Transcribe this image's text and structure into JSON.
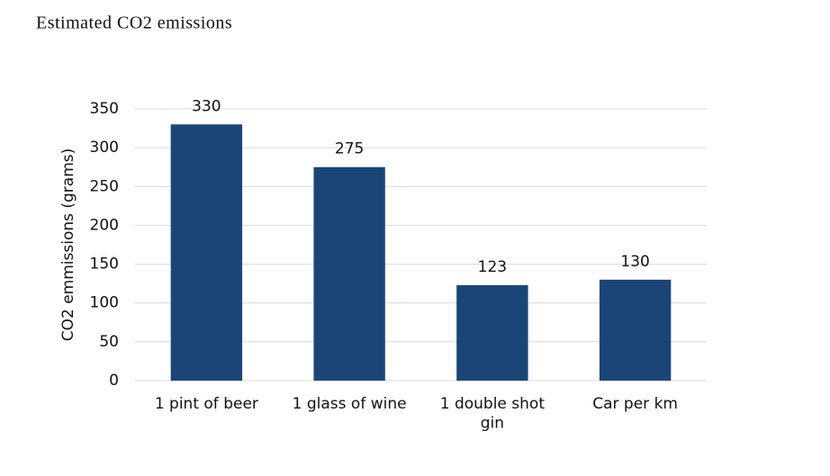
{
  "chart_data": {
    "type": "bar",
    "title": "Estimated CO2 emissions",
    "y_label": "CO2 emmissions (grams)",
    "categories": [
      "1 pint of beer",
      "1 glass of wine",
      "1 double shot gin",
      "Car per km"
    ],
    "values": [
      330,
      275,
      123,
      130
    ],
    "color": "#1c4577",
    "ylim": [
      0,
      350
    ],
    "yticks": [
      0,
      50,
      100,
      150,
      200,
      250,
      300,
      350
    ],
    "grid": true
  }
}
